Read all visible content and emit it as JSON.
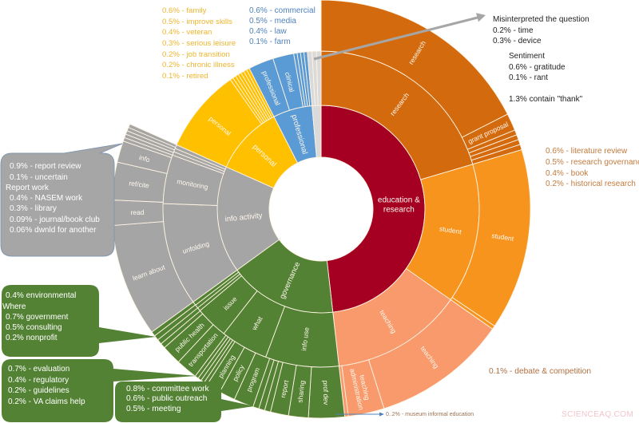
{
  "chart_data": {
    "type": "sunburst",
    "title": "",
    "center": [
      402,
      262
    ],
    "separator_color": "#FFF4E4",
    "label_color": "#FFF8EE",
    "colors": {
      "education_research": "#A50021",
      "research": "#D46A0E",
      "student": "#F7941D",
      "teaching": "#F89A6C",
      "governance": "#548235",
      "info_activity": "#A5A5A5",
      "personal": "#FFC000",
      "professional": "#5B9BD5",
      "misc": "#DADADA"
    },
    "rings": [
      {
        "name": "category",
        "inner_radius": 65,
        "outer_radius": 130,
        "label_size": 9.5,
        "segments": [
          {
            "label": "education & research",
            "label_lines": [
              "education &",
              "research"
            ],
            "label_mode": "horizontal",
            "label_size": 10,
            "start": 0,
            "end": 173.5,
            "value_pct": 48.2,
            "color": "#A50021"
          },
          {
            "label": "governance",
            "start": 173.5,
            "end": 234,
            "value_pct": 16.8,
            "color": "#548235"
          },
          {
            "label": "info activity",
            "start": 234,
            "end": 294,
            "value_pct": 16.7,
            "color": "#A5A5A5"
          },
          {
            "label": "personal",
            "start": 294,
            "end": 333,
            "value_pct": 10.8,
            "color": "#FFC000"
          },
          {
            "label": "professional",
            "start": 333,
            "end": 355,
            "value_pct": 6.1,
            "color": "#5B9BD5"
          },
          {
            "label": "",
            "start": 355,
            "end": 360,
            "value_pct": 1.4,
            "color": "#DADADA"
          }
        ]
      },
      {
        "name": "subcategory",
        "inner_radius": 130,
        "outer_radius": 198,
        "label_size": 8.5,
        "segments": [
          {
            "label": "research",
            "start": 0,
            "end": 73.5,
            "value_pct": 20.4,
            "color": "#D46A0E"
          },
          {
            "label": "student",
            "start": 73.5,
            "end": 125,
            "value_pct": 14.3,
            "color": "#F7941D"
          },
          {
            "label": "teaching",
            "start": 125,
            "end": 173.5,
            "value_pct": 13.5,
            "color": "#F89A6C"
          },
          {
            "label": "info use",
            "start": 173.5,
            "end": 200.5,
            "value_pct": 7.5,
            "color": "#548235"
          },
          {
            "label": "what",
            "start": 200.5,
            "end": 218,
            "value_pct": 4.9,
            "color": "#548235"
          },
          {
            "label": "issue",
            "start": 218,
            "end": 230,
            "value_pct": 3.3,
            "color": "#548235"
          },
          {
            "label": "",
            "start": 230,
            "end": 231.3,
            "value_pct": 0.36,
            "color": "#548235"
          },
          {
            "label": "",
            "start": 231.3,
            "end": 232.6,
            "value_pct": 0.36,
            "color": "#548235"
          },
          {
            "label": "",
            "start": 232.6,
            "end": 234,
            "value_pct": 0.39,
            "color": "#548235"
          },
          {
            "label": "unfolding",
            "start": 234,
            "end": 272,
            "value_pct": 10.6,
            "color": "#A5A5A5"
          },
          {
            "label": "monitoring",
            "start": 272,
            "end": 290,
            "value_pct": 5.0,
            "color": "#A5A5A5"
          },
          {
            "label": "",
            "start": 290,
            "end": 291.3,
            "value_pct": 0.36,
            "color": "#A5A5A5"
          },
          {
            "label": "",
            "start": 291.3,
            "end": 292.6,
            "value_pct": 0.36,
            "color": "#A5A5A5"
          },
          {
            "label": "",
            "start": 292.6,
            "end": 294,
            "value_pct": 0.39,
            "color": "#A5A5A5"
          },
          {
            "label": "personal",
            "start": 294,
            "end": 325,
            "value_pct": 8.6,
            "color": "#FFC000"
          },
          {
            "label": "",
            "start": 325,
            "end": 326.14,
            "value_pct": 0.32,
            "color": "#FFC000"
          },
          {
            "label": "",
            "start": 326.14,
            "end": 327.29,
            "value_pct": 0.32,
            "color": "#FFC000"
          },
          {
            "label": "",
            "start": 327.29,
            "end": 328.43,
            "value_pct": 0.32,
            "color": "#FFC000"
          },
          {
            "label": "",
            "start": 328.43,
            "end": 329.57,
            "value_pct": 0.32,
            "color": "#FFC000"
          },
          {
            "label": "",
            "start": 329.57,
            "end": 330.71,
            "value_pct": 0.32,
            "color": "#FFC000"
          },
          {
            "label": "",
            "start": 330.71,
            "end": 331.86,
            "value_pct": 0.32,
            "color": "#FFC000"
          },
          {
            "label": "",
            "start": 331.86,
            "end": 333,
            "value_pct": 0.32,
            "color": "#FFC000"
          },
          {
            "label": "professional",
            "start": 333,
            "end": 342.3,
            "value_pct": 2.6,
            "color": "#5B9BD5"
          },
          {
            "label": "clinical",
            "start": 342.3,
            "end": 350,
            "value_pct": 2.1,
            "color": "#5B9BD5"
          },
          {
            "label": "",
            "start": 350,
            "end": 351.25,
            "value_pct": 0.35,
            "color": "#5B9BD5"
          },
          {
            "label": "",
            "start": 351.25,
            "end": 352.5,
            "value_pct": 0.35,
            "color": "#5B9BD5"
          },
          {
            "label": "",
            "start": 352.5,
            "end": 353.75,
            "value_pct": 0.35,
            "color": "#5B9BD5"
          },
          {
            "label": "",
            "start": 353.75,
            "end": 355,
            "value_pct": 0.35,
            "color": "#5B9BD5"
          },
          {
            "label": "",
            "start": 355,
            "end": 356.7,
            "value_pct": 0.47,
            "color": "#DADADA"
          },
          {
            "label": "",
            "start": 356.7,
            "end": 358.3,
            "value_pct": 0.44,
            "color": "#DADADA"
          },
          {
            "label": "",
            "start": 358.3,
            "end": 360,
            "value_pct": 0.47,
            "color": "#DADADA"
          }
        ]
      },
      {
        "name": "detail",
        "inner_radius": 198,
        "outer_radius": 262,
        "label_size": 8.5,
        "segments": [
          {
            "label": "research",
            "start": 0,
            "end": 63,
            "value_pct": 17.5,
            "color": "#D46A0E"
          },
          {
            "label": "grant proposal",
            "start": 63,
            "end": 67.8,
            "value_pct": 1.3,
            "color": "#D46A0E"
          },
          {
            "label": "",
            "start": 67.8,
            "end": 69.2,
            "value_pct": 0.39,
            "color": "#D46A0E"
          },
          {
            "label": "",
            "start": 69.2,
            "end": 70.6,
            "value_pct": 0.39,
            "color": "#D46A0E"
          },
          {
            "label": "",
            "start": 70.6,
            "end": 72.0,
            "value_pct": 0.39,
            "color": "#D46A0E"
          },
          {
            "label": "",
            "start": 72.0,
            "end": 73.5,
            "value_pct": 0.42,
            "color": "#D46A0E"
          },
          {
            "label": "student",
            "start": 73.5,
            "end": 124,
            "value_pct": 14.0,
            "color": "#F7941D"
          },
          {
            "label": "",
            "start": 124,
            "end": 125,
            "value_pct": 0.28,
            "color": "#F7941D"
          },
          {
            "label": "teaching",
            "start": 125,
            "end": 162.5,
            "value_pct": 10.4,
            "color": "#F89A6C"
          },
          {
            "label": "teaching administration",
            "label_lines": [
              "teaching",
              "administration"
            ],
            "start": 162.5,
            "end": 172.5,
            "value_pct": 2.8,
            "color": "#F89A6C"
          },
          {
            "label": "",
            "start": 172.5,
            "end": 173.5,
            "value_pct": 0.28,
            "color": "#F89A6C"
          },
          {
            "label": "prof dev",
            "start": 173.5,
            "end": 183.5,
            "value_pct": 2.8,
            "color": "#548235"
          },
          {
            "label": "sharing",
            "start": 183.5,
            "end": 189,
            "value_pct": 1.5,
            "color": "#548235"
          },
          {
            "label": "report",
            "start": 189,
            "end": 194,
            "value_pct": 1.4,
            "color": "#548235"
          },
          {
            "label": "",
            "start": 194,
            "end": 195.67,
            "value_pct": 0.46,
            "color": "#548235"
          },
          {
            "label": "",
            "start": 195.67,
            "end": 197.33,
            "value_pct": 0.46,
            "color": "#548235"
          },
          {
            "label": "",
            "start": 197.33,
            "end": 199,
            "value_pct": 0.46,
            "color": "#548235"
          },
          {
            "label": "program",
            "start": 199,
            "end": 204.5,
            "value_pct": 1.5,
            "color": "#548235"
          },
          {
            "label": "policy",
            "start": 204.5,
            "end": 209,
            "value_pct": 1.25,
            "color": "#548235"
          },
          {
            "label": "planning",
            "start": 209,
            "end": 213,
            "value_pct": 1.1,
            "color": "#548235"
          },
          {
            "label": "",
            "start": 213,
            "end": 214,
            "value_pct": 0.28,
            "color": "#548235"
          },
          {
            "label": "",
            "start": 214,
            "end": 215,
            "value_pct": 0.28,
            "color": "#548235"
          },
          {
            "label": "",
            "start": 215,
            "end": 216,
            "value_pct": 0.28,
            "color": "#548235"
          },
          {
            "label": "",
            "start": 216,
            "end": 217,
            "value_pct": 0.28,
            "color": "#548235"
          },
          {
            "label": "transportation",
            "start": 217,
            "end": 223,
            "value_pct": 1.7,
            "color": "#548235"
          },
          {
            "label": "public health",
            "start": 223,
            "end": 228.5,
            "value_pct": 1.5,
            "color": "#548235"
          },
          {
            "label": "",
            "start": 228.5,
            "end": 229.9,
            "value_pct": 0.39,
            "color": "#548235"
          },
          {
            "label": "",
            "start": 229.9,
            "end": 231.3,
            "value_pct": 0.39,
            "color": "#548235"
          },
          {
            "label": "",
            "start": 231.3,
            "end": 232.7,
            "value_pct": 0.39,
            "color": "#548235"
          },
          {
            "label": "",
            "start": 232.7,
            "end": 234,
            "value_pct": 0.36,
            "color": "#548235"
          },
          {
            "label": "learn about",
            "start": 234,
            "end": 265.5,
            "value_pct": 8.75,
            "color": "#A5A5A5"
          },
          {
            "label": "read",
            "start": 265.5,
            "end": 272.5,
            "value_pct": 1.9,
            "color": "#A5A5A5"
          },
          {
            "label": "ref/cite",
            "start": 272.5,
            "end": 283,
            "value_pct": 2.9,
            "color": "#A5A5A5"
          },
          {
            "label": "info",
            "start": 283,
            "end": 289,
            "value_pct": 1.7,
            "color": "#A5A5A5"
          },
          {
            "label": "",
            "start": 289,
            "end": 290,
            "value_pct": 0.28,
            "color": "#A5A5A5"
          },
          {
            "label": "",
            "start": 290,
            "end": 291,
            "value_pct": 0.28,
            "color": "#A5A5A5"
          },
          {
            "label": "",
            "start": 291,
            "end": 292,
            "value_pct": 0.28,
            "color": "#A5A5A5"
          },
          {
            "label": "",
            "start": 292,
            "end": 293,
            "value_pct": 0.28,
            "color": "#A5A5A5"
          },
          {
            "label": "",
            "start": 293,
            "end": 294,
            "value_pct": 0.28,
            "color": "#A5A5A5"
          }
        ]
      }
    ]
  },
  "annotations": {
    "personal_notes": {
      "color": "#EDB52E",
      "lines": [
        "0.6% - family",
        "0.5% - improve skills",
        "0.4% - veteran",
        "0.3% - serious leisure",
        "0.2% - job transition",
        "0.2% - chronic illness",
        "0.1% - retired"
      ]
    },
    "professional_notes": {
      "color": "#4F81BD",
      "lines": [
        "0.6% - commercial",
        "0.5% - media",
        "0.4% - law",
        "0.1% - farm"
      ]
    },
    "misinterpreted": {
      "title": "Misinterpreted the question",
      "lines": [
        "0.2% - time",
        "0.3% - device"
      ],
      "arrow_color": "#A6A6A6"
    },
    "sentiment": {
      "title": "Sentiment",
      "lines": [
        "0.6% - gratitude",
        "0.1% - rant"
      ]
    },
    "thank_note": "1.3% contain \"thank\"",
    "research_notes": {
      "color": "#C27B3E",
      "lines": [
        "0.6% - literature review",
        "0.5% - research governance",
        "0.4% - book",
        "0.2% - historical research"
      ]
    },
    "debate_note": {
      "color": "#B07040",
      "text": "0.1% - debate & competition"
    },
    "museum_note": {
      "color": "#9A6F50",
      "arrow_color": "#4F81BD",
      "text": "0..2% - museum informal education"
    },
    "info_callout": {
      "fill": "#A6A6A6",
      "border": "#8497B0",
      "lines": [
        "0.9% - report review",
        "0.1% - uncertain",
        "Report work",
        "0.4% - NASEM work",
        "0.3% - library",
        "0.09% - journal/book club",
        "0.06% dwnld for another"
      ]
    },
    "governance_callouts": [
      {
        "fill": "#548235",
        "lines": [
          "0.4% environmental",
          "Where",
          "0.7% government",
          "0.5% consulting",
          "0.2% nonprofit"
        ]
      },
      {
        "fill": "#548235",
        "lines": [
          "0.7% - evaluation",
          "0.4% - regulatory",
          "0.2% - guidelines",
          "0.2% - VA claims help"
        ]
      },
      {
        "fill": "#548235",
        "lines": [
          "0.8% - committee work",
          "0.6% - public outreach",
          "0.5% - meeting"
        ]
      }
    ]
  },
  "watermark": "SCIENCEAQ.COM"
}
